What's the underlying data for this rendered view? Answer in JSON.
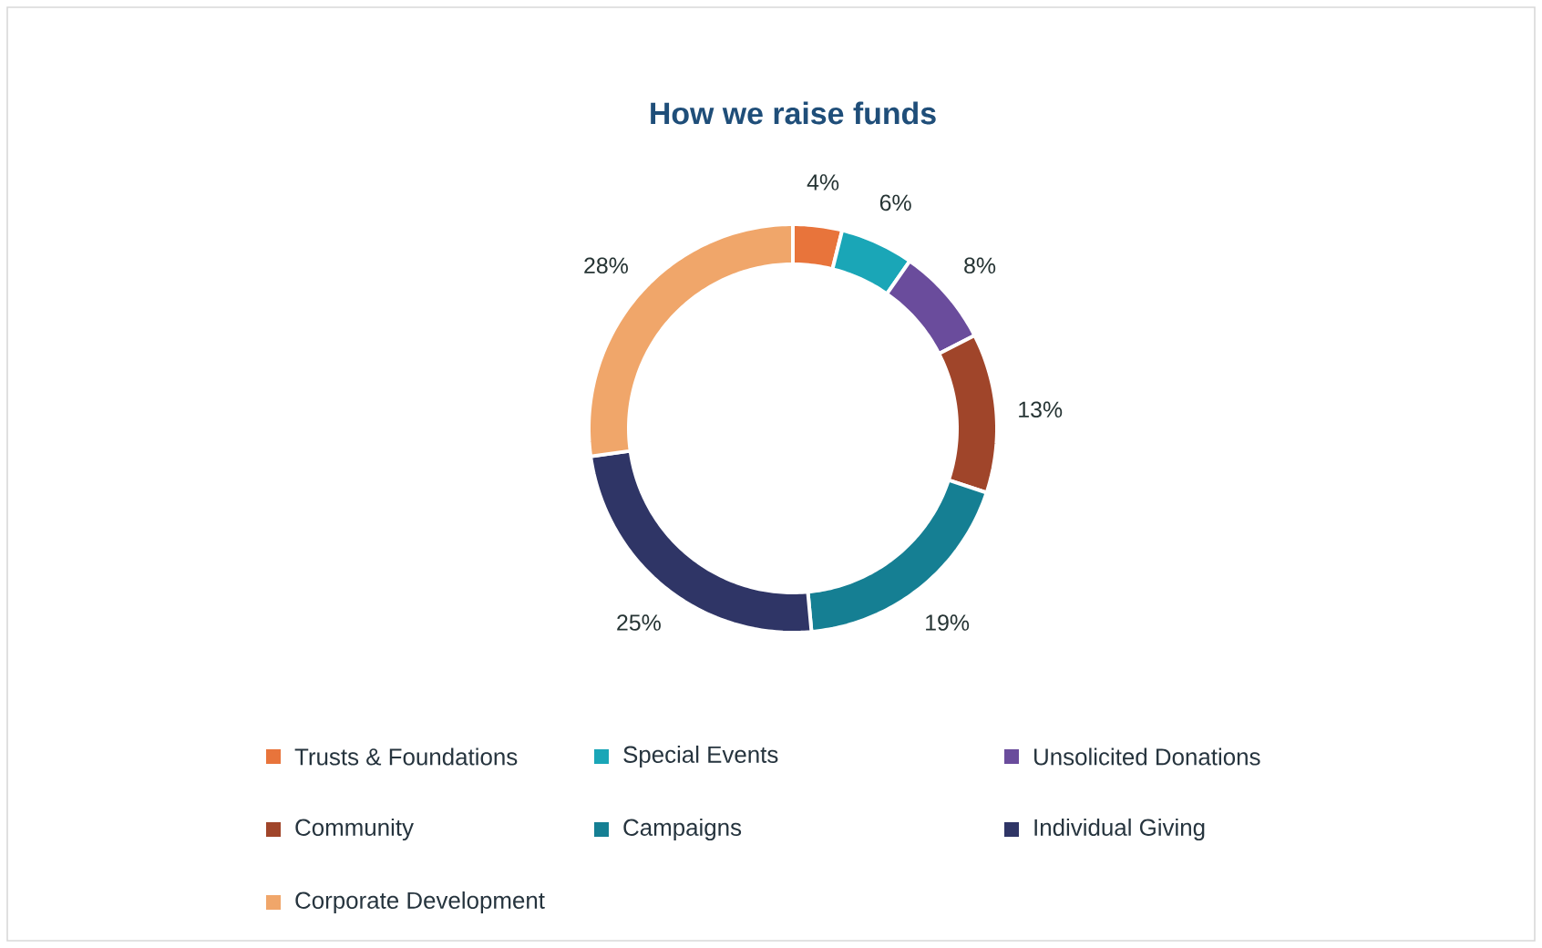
{
  "chart_data": {
    "type": "donut",
    "title": "How we raise funds",
    "categories": [
      "Trusts & Foundations",
      "Special Events",
      "Unsolicited Donations",
      "Community",
      "Campaigns",
      "Individual Giving",
      "Corporate Development"
    ],
    "values": [
      4,
      6,
      8,
      13,
      19,
      25,
      28
    ],
    "value_labels": [
      "4%",
      "6%",
      "8%",
      "13%",
      "19%",
      "25%",
      "28%"
    ],
    "colors": [
      "#e8743b",
      "#1aa6b7",
      "#6a4c9c",
      "#a0452a",
      "#157f93",
      "#2f3566",
      "#f0a66a"
    ],
    "legend": "bottom"
  }
}
